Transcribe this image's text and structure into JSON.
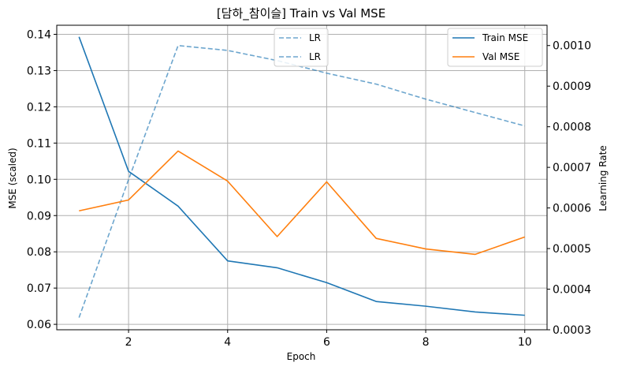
{
  "chart_data": {
    "type": "line",
    "title": "[담하_참이슬] Train vs Val MSE",
    "xlabel": "Epoch",
    "ylabel": "MSE (scaled)",
    "y2label": "Learning Rate",
    "x": [
      1,
      2,
      3,
      4,
      5,
      6,
      7,
      8,
      9,
      10
    ],
    "xlim": [
      0.55,
      10.45
    ],
    "xticks": [
      2,
      4,
      6,
      8,
      10
    ],
    "ylim": [
      0.0585,
      0.1425
    ],
    "yticks": [
      0.06,
      0.07,
      0.08,
      0.09,
      0.1,
      0.11,
      0.12,
      0.13,
      0.14
    ],
    "y2lim": [
      0.0003,
      0.00105
    ],
    "y2ticks": [
      0.0003,
      0.0004,
      0.0005,
      0.0006,
      0.0007,
      0.0008,
      0.0009,
      0.001
    ],
    "grid": true,
    "series": [
      {
        "name": "Train MSE",
        "axis": "left",
        "color": "#1f77b4",
        "style": "solid",
        "values": [
          0.1393,
          0.1022,
          0.0926,
          0.0775,
          0.0756,
          0.0715,
          0.0663,
          0.065,
          0.0634,
          0.0625
        ]
      },
      {
        "name": "Val MSE",
        "axis": "left",
        "color": "#ff7f0e",
        "style": "solid",
        "values": [
          0.0913,
          0.0943,
          0.1078,
          0.0995,
          0.0842,
          0.0993,
          0.0837,
          0.0808,
          0.0793,
          0.0841
        ]
      },
      {
        "name": "LR",
        "axis": "right",
        "color": "#1f77b4",
        "style": "dashed",
        "alpha": 0.65,
        "values": [
          0.00033,
          0.00067,
          0.001,
          0.000988,
          0.000963,
          0.000932,
          0.000905,
          0.000868,
          0.000835,
          0.000802
        ]
      }
    ],
    "legends": [
      {
        "placement": "upper-center",
        "entries": [
          {
            "label": "LR",
            "color": "#1f77b4",
            "style": "dashed"
          },
          {
            "label": "LR",
            "color": "#1f77b4",
            "style": "dashed"
          }
        ]
      },
      {
        "placement": "upper-right",
        "entries": [
          {
            "label": "Train MSE",
            "color": "#1f77b4",
            "style": "solid"
          },
          {
            "label": "Val MSE",
            "color": "#ff7f0e",
            "style": "solid"
          }
        ]
      }
    ]
  }
}
